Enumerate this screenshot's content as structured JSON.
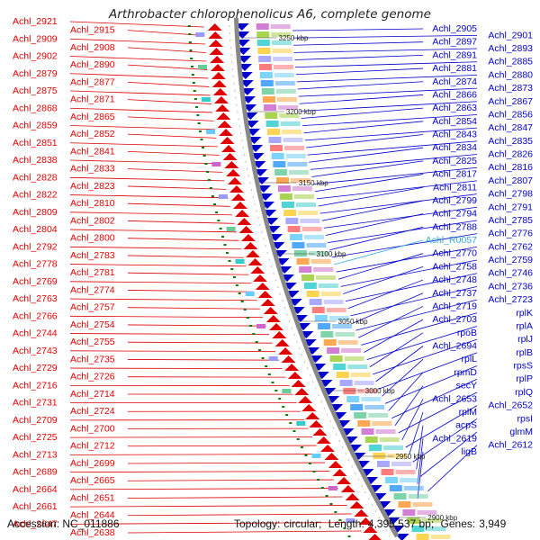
{
  "title": "Arthrobacter chlorophenolicus A6, complete genome",
  "footer": {
    "accession_label": "Accession:",
    "accession": "NC_011886",
    "topology_label": "Topology:",
    "topology": "circular;",
    "length_label": "Length:",
    "length": "4,395,537 bp;",
    "genes_label": "Genes:",
    "genes": "3,949"
  },
  "colors": {
    "left_genes": "#e00000",
    "right_genes": "#0000cc",
    "rna_gene": "#33aadd",
    "backbone": "#888888",
    "tick_marks": "#0a7a0a"
  },
  "backbone_ticks": [
    {
      "label": "3250 kbp"
    },
    {
      "label": "3200 kbp"
    },
    {
      "label": "3150 kbp"
    },
    {
      "label": "3100 kbp"
    },
    {
      "label": "3050 kbp"
    },
    {
      "label": "3000 kbp"
    },
    {
      "label": "2950 kbp"
    },
    {
      "label": "2900 kbp"
    }
  ],
  "left_labels": [
    "Achl_2921",
    "Achl_2915",
    "Achl_2909",
    "Achl_2908",
    "Achl_2902",
    "Achl_2890",
    "Achl_2879",
    "Achl_2877",
    "Achl_2875",
    "Achl_2871",
    "Achl_2868",
    "Achl_2865",
    "Achl_2859",
    "Achl_2852",
    "Achl_2851",
    "Achl_2841",
    "Achl_2838",
    "Achl_2833",
    "Achl_2828",
    "Achl_2823",
    "Achl_2822",
    "Achl_2810",
    "Achl_2809",
    "Achl_2802",
    "Achl_2804",
    "Achl_2800",
    "Achl_2792",
    "Achl_2783",
    "Achl_2778",
    "Achl_2781",
    "Achl_2769",
    "Achl_2774",
    "Achl_2763",
    "Achl_2757",
    "Achl_2766",
    "Achl_2754",
    "Achl_2744",
    "Achl_2755",
    "Achl_2743",
    "Achl_2735",
    "Achl_2729",
    "Achl_2726",
    "Achl_2716",
    "Achl_2714",
    "Achl_2731",
    "Achl_2724",
    "Achl_2709",
    "Achl_2700",
    "Achl_2725",
    "Achl_2712",
    "Achl_2713",
    "Achl_2699",
    "Achl_2689",
    "Achl_2665",
    "Achl_2664",
    "Achl_2651",
    "Achl_2661",
    "Achl_2644",
    "Achl_2647",
    "Achl_2638"
  ],
  "right_labels": [
    "Achl_2905",
    "Achl_2901",
    "Achl_2897",
    "Achl_2893",
    "Achl_2891",
    "Achl_2885",
    "Achl_2881",
    "Achl_2880",
    "Achl_2874",
    "Achl_2873",
    "Achl_2866",
    "Achl_2867",
    "Achl_2863",
    "Achl_2856",
    "Achl_2854",
    "Achl_2847",
    "Achl_2843",
    "Achl_2835",
    "Achl_2834",
    "Achl_2826",
    "Achl_2825",
    "Achl_2816",
    "Achl_2817",
    "Achl_2807",
    "Achl_2811",
    "Achl_2798",
    "Achl_2799",
    "Achl_2791",
    "Achl_2794",
    "Achl_2785",
    "Achl_2788",
    "Achl_2776",
    "Achl_R0057",
    "Achl_2762",
    "Achl_2770",
    "Achl_2759",
    "Achl_2758",
    "Achl_2746",
    "Achl_2748",
    "Achl_2736",
    "Achl_2737",
    "Achl_2723",
    "Achl_2719",
    "rplK",
    "Achl_2703",
    "rplA",
    "rpoB",
    "rplJ",
    "Achl_2694",
    "rplB",
    "rplL",
    "rpsS",
    "rpmD",
    "rplP",
    "secY",
    "rplQ",
    "Achl_2653",
    "Achl_2652",
    "rplM",
    "rpsI",
    "acpS",
    "glmM",
    "Achl_2619",
    "Achl_2612",
    "ligB"
  ]
}
